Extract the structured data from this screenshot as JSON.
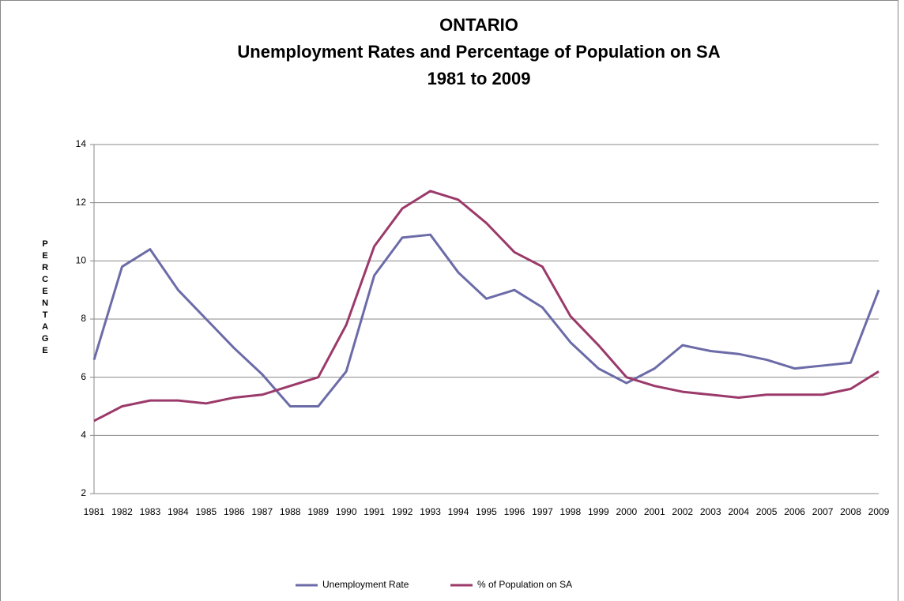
{
  "chart_data": {
    "type": "line",
    "title": [
      "ONTARIO",
      "Unemployment Rates and Percentage of Population on SA",
      "1981 to 2009"
    ],
    "y_label": "PERCENTAGE",
    "categories": [
      "1981",
      "1982",
      "1983",
      "1984",
      "1985",
      "1986",
      "1987",
      "1988",
      "1989",
      "1990",
      "1991",
      "1992",
      "1993",
      "1994",
      "1995",
      "1996",
      "1997",
      "1998",
      "1999",
      "2000",
      "2001",
      "2002",
      "2003",
      "2004",
      "2005",
      "2006",
      "2007",
      "2008",
      "2009"
    ],
    "series": [
      {
        "name": "Unemployment Rate",
        "color": "#6b6ba8",
        "values": [
          6.6,
          9.8,
          10.4,
          9.0,
          8.0,
          7.0,
          6.1,
          5.0,
          5.0,
          6.2,
          9.5,
          10.8,
          10.9,
          9.6,
          8.7,
          9.0,
          8.4,
          7.2,
          6.3,
          5.8,
          6.3,
          7.1,
          6.9,
          6.8,
          6.6,
          6.3,
          6.4,
          6.5,
          9.0
        ]
      },
      {
        "name": "% of Population on SA",
        "color": "#9b3a6a",
        "values": [
          4.5,
          5.0,
          5.2,
          5.2,
          5.1,
          5.3,
          5.4,
          5.7,
          6.0,
          7.8,
          10.5,
          11.8,
          12.4,
          12.1,
          11.3,
          10.3,
          9.8,
          8.1,
          7.1,
          6.0,
          5.7,
          5.5,
          5.4,
          5.3,
          5.4,
          5.4,
          5.4,
          5.6,
          6.2
        ]
      }
    ],
    "ylim": [
      2,
      14
    ],
    "yticks": [
      2,
      4,
      6,
      8,
      10,
      12,
      14
    ],
    "grid": true,
    "legend": "bottom"
  }
}
